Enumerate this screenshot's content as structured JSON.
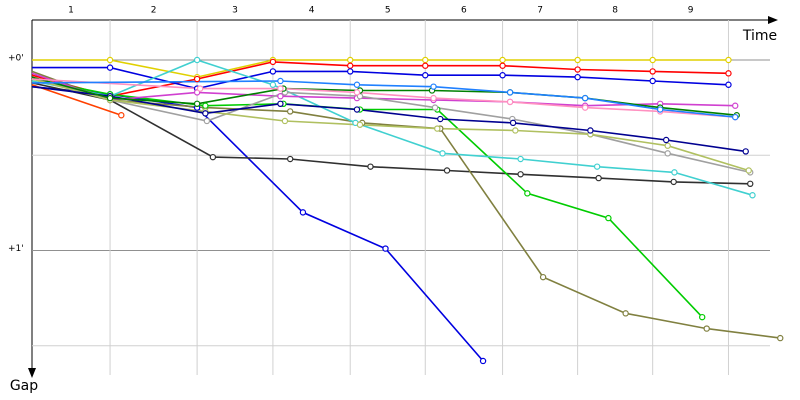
{
  "chart_data": {
    "type": "line",
    "x_label": "Time",
    "y_label": "Gap",
    "xlim": [
      0,
      9.9
    ],
    "ylim": [
      -0.21,
      1.68
    ],
    "xticks": [
      1.04,
      2.2,
      3.21,
      4.24,
      5.24,
      6.27,
      7.27,
      8.27,
      9.28
    ],
    "categories": [
      "1",
      "2",
      "3",
      "4",
      "5",
      "6",
      "7",
      "8",
      "9"
    ],
    "yticks": [
      {
        "value": 0,
        "label": "+0'"
      },
      {
        "value": 0.5,
        "label": null
      },
      {
        "value": 1,
        "label": "+1'"
      },
      {
        "value": 1.5,
        "label": null
      }
    ],
    "grid": true,
    "series": [
      {
        "color": "#e0d000",
        "x": [
          0,
          1.04,
          2.2,
          3.21,
          4.24,
          5.24,
          6.27,
          7.27,
          8.27,
          9.28
        ],
        "values": [
          0,
          0,
          0.09,
          0,
          0,
          0,
          0,
          0,
          0,
          0
        ]
      },
      {
        "color": "#ff4000",
        "x": [
          0,
          1.19
        ],
        "values": [
          0.13,
          0.29
        ]
      },
      {
        "color": "#ff0000",
        "x": [
          0,
          1.04,
          2.2,
          3.21,
          4.24,
          5.24,
          6.27,
          7.27,
          8.27,
          9.28
        ],
        "values": [
          0.08,
          0.19,
          0.1,
          0.01,
          0.03,
          0.03,
          0.03,
          0.05,
          0.06,
          0.07
        ]
      },
      {
        "color": "#0000e0",
        "x": [
          0,
          1.04,
          2.2,
          3.21,
          4.24,
          5.24,
          6.27,
          7.27,
          8.27,
          9.28
        ],
        "values": [
          0.04,
          0.04,
          0.15,
          0.06,
          0.06,
          0.08,
          0.08,
          0.09,
          0.11,
          0.13
        ]
      },
      {
        "color": "#0000e0",
        "x": [
          0,
          1.04,
          2.2,
          3.61,
          4.71,
          6.01
        ],
        "values": [
          0.14,
          0.18,
          0.25,
          0.8,
          0.99,
          1.58
        ]
      },
      {
        "color": "#303030",
        "x": [
          0,
          1.04,
          2.41,
          3.44,
          4.51,
          5.53,
          6.51,
          7.55,
          8.55,
          9.57
        ],
        "values": [
          0.12,
          0.21,
          0.51,
          0.52,
          0.56,
          0.58,
          0.6,
          0.62,
          0.64,
          0.65
        ]
      },
      {
        "color": "#808040",
        "x": [
          0,
          1.04,
          2.31,
          3.44,
          4.4,
          5.44,
          6.81,
          7.91,
          8.99,
          9.97
        ],
        "values": [
          0.06,
          0.21,
          0.25,
          0.27,
          0.33,
          0.36,
          1.14,
          1.33,
          1.41,
          1.46
        ]
      },
      {
        "color": "#00cc00",
        "x": [
          0,
          1.04,
          2.31,
          3.35,
          4.37,
          5.4,
          6.6,
          7.68,
          8.93
        ],
        "values": [
          0.1,
          0.18,
          0.24,
          0.23,
          0.26,
          0.26,
          0.7,
          0.83,
          1.35
        ]
      },
      {
        "color": "#40d0d0",
        "x": [
          0,
          1.04,
          2.2,
          3.21,
          4.31,
          5.47,
          6.51,
          7.53,
          8.56,
          9.6
        ],
        "values": [
          0.11,
          0.19,
          0,
          0.13,
          0.33,
          0.49,
          0.52,
          0.56,
          0.59,
          0.71
        ]
      },
      {
        "color": "#d040d0",
        "x": [
          0,
          1.04,
          2.2,
          3.31,
          4.33,
          5.35,
          6.37,
          7.37,
          8.37,
          9.37
        ],
        "values": [
          0.07,
          0.21,
          0.17,
          0.19,
          0.2,
          0.21,
          0.22,
          0.24,
          0.23,
          0.24
        ]
      },
      {
        "color": "#a0a0a0",
        "x": [
          0,
          1.04,
          2.33,
          3.37,
          4.37,
          5.37,
          6.4,
          7.44,
          8.47,
          9.57
        ],
        "values": [
          0.09,
          0.21,
          0.32,
          0.17,
          0.19,
          0.25,
          0.31,
          0.39,
          0.49,
          0.59
        ]
      },
      {
        "color": "#b0c060",
        "x": [
          0,
          1.04,
          2.31,
          3.37,
          4.37,
          5.4,
          6.44,
          7.44,
          8.47,
          9.55
        ],
        "values": [
          0.1,
          0.21,
          0.27,
          0.32,
          0.34,
          0.36,
          0.37,
          0.39,
          0.45,
          0.58
        ]
      },
      {
        "color": "#000090",
        "x": [
          0,
          1.04,
          2.31,
          3.31,
          4.33,
          5.44,
          6.41,
          7.44,
          8.45,
          9.51
        ],
        "values": [
          0.14,
          0.19,
          0.28,
          0.23,
          0.26,
          0.31,
          0.33,
          0.37,
          0.42,
          0.48
        ]
      },
      {
        "color": "#008000",
        "x": [
          0,
          1.04,
          2.2,
          3.35,
          4.37,
          5.33,
          6.37,
          7.37,
          8.37,
          9.39
        ],
        "values": [
          0.09,
          0.2,
          0.23,
          0.15,
          0.16,
          0.16,
          0.17,
          0.2,
          0.25,
          0.29
        ]
      },
      {
        "color": "#ff90c0",
        "x": [
          0,
          2.24,
          3.31,
          4.33,
          5.35,
          6.37,
          7.37,
          8.37,
          9.37
        ],
        "values": [
          0.1,
          0.15,
          0.15,
          0.17,
          0.2,
          0.22,
          0.25,
          0.27,
          0.3
        ]
      },
      {
        "color": "#2080ff",
        "x": [
          0,
          3.31,
          4.33,
          5.35,
          6.37,
          7.37,
          8.37,
          9.37
        ],
        "values": [
          0.12,
          0.11,
          0.13,
          0.14,
          0.17,
          0.2,
          0.26,
          0.3
        ]
      }
    ]
  }
}
